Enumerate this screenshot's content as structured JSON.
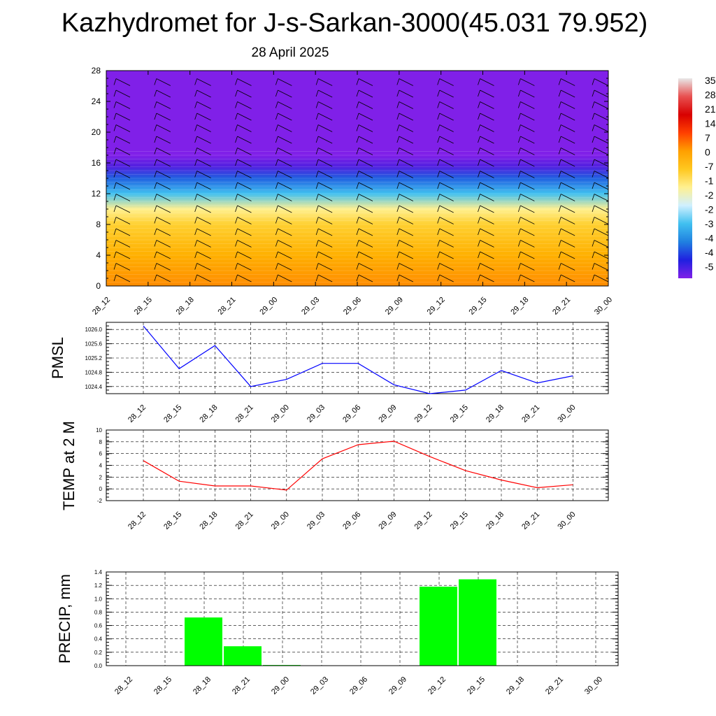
{
  "title": "Kazhydromet for J-s-Sarkan-3000(45.031 79.952)",
  "subtitle": "28 April 2025",
  "colors": {
    "pmsl_line": "#0000ff",
    "temp_line": "#ff0000",
    "precip_bar": "#00ff00",
    "grid": "#000000",
    "colorbar": [
      "#e8e8e8",
      "#e85050",
      "#d80000",
      "#ff4000",
      "#ffa000",
      "#ffc820",
      "#fff090",
      "#d0f0ff",
      "#40c0f0",
      "#2080e0",
      "#2020e0",
      "#8020e8"
    ]
  },
  "chart_data": [
    {
      "id": "upper_air",
      "type": "heatmap",
      "title": "",
      "ylabel": "",
      "x_ticks": [
        "28_12",
        "28_15",
        "28_18",
        "28_21",
        "29_00",
        "29_03",
        "29_06",
        "29_09",
        "29_12",
        "29_15",
        "29_18",
        "29_21",
        "30_00"
      ],
      "y_ticks": [
        0,
        4,
        8,
        12,
        16,
        20,
        24,
        28
      ],
      "ylim": [
        0,
        28
      ],
      "colorbar_labels": [
        "35",
        "28",
        "21",
        "14",
        "7",
        "0",
        "-7",
        "-1",
        "-2",
        "-2",
        "-3",
        "-4",
        "-4",
        "-5"
      ],
      "profile": [
        {
          "level": 0,
          "value": 14
        },
        {
          "level": 4,
          "value": 10
        },
        {
          "level": 8,
          "value": 4
        },
        {
          "level": 10,
          "value": -7
        },
        {
          "level": 12,
          "value": -21
        },
        {
          "level": 14,
          "value": -35
        },
        {
          "level": 15.5,
          "value": -49
        },
        {
          "level": 17,
          "value": -56
        },
        {
          "level": 28,
          "value": -56
        }
      ],
      "wind_barbs": "present"
    },
    {
      "id": "pmsl",
      "type": "line",
      "ylabel": "PMSL",
      "x_ticks": [
        "28_12",
        "28_15",
        "28_18",
        "28_21",
        "29_00",
        "29_03",
        "29_06",
        "29_09",
        "29_12",
        "29_15",
        "29_18",
        "29_21",
        "30_00"
      ],
      "y_ticks": [
        "1024.4",
        "1024.8",
        "1025.2",
        "1025.6",
        "1026.0"
      ],
      "ylim": [
        1024.2,
        1026.2
      ],
      "series": [
        {
          "values": [
            1026.1,
            1024.9,
            1025.55,
            1024.4,
            1024.6,
            1025.05,
            1025.05,
            1024.45,
            1024.2,
            1024.3,
            1024.85,
            1024.5,
            1024.7
          ]
        }
      ],
      "grid": true
    },
    {
      "id": "temp",
      "type": "line",
      "ylabel": "TEMP at 2 M",
      "x_ticks": [
        "28_12",
        "28_15",
        "28_18",
        "28_21",
        "29_00",
        "29_03",
        "29_06",
        "29_09",
        "29_12",
        "29_15",
        "29_18",
        "29_21",
        "30_00"
      ],
      "y_ticks": [
        "-2",
        "0",
        "2",
        "4",
        "6",
        "8",
        "10"
      ],
      "ylim": [
        -2,
        10
      ],
      "series": [
        {
          "values": [
            4.8,
            1.3,
            0.5,
            0.5,
            -0.2,
            5.1,
            7.5,
            8.1,
            5.5,
            3.1,
            1.5,
            0.2,
            0.7
          ]
        }
      ],
      "grid": true
    },
    {
      "id": "precip",
      "type": "bar",
      "ylabel": "PRECIP, mm",
      "x_ticks": [
        "28_12",
        "28_15",
        "28_18",
        "28_21",
        "29_00",
        "29_03",
        "29_06",
        "29_09",
        "29_12",
        "29_15",
        "29_18",
        "29_21",
        "30_00"
      ],
      "y_ticks": [
        "0.0",
        "0.2",
        "0.4",
        "0.6",
        "0.8",
        "1.0",
        "1.2",
        "1.4"
      ],
      "ylim": [
        0,
        1.4
      ],
      "values": [
        0,
        0.72,
        0.29,
        0.01,
        0,
        0,
        0,
        1.18,
        1.29,
        0,
        0,
        0,
        0
      ],
      "grid": true
    }
  ]
}
